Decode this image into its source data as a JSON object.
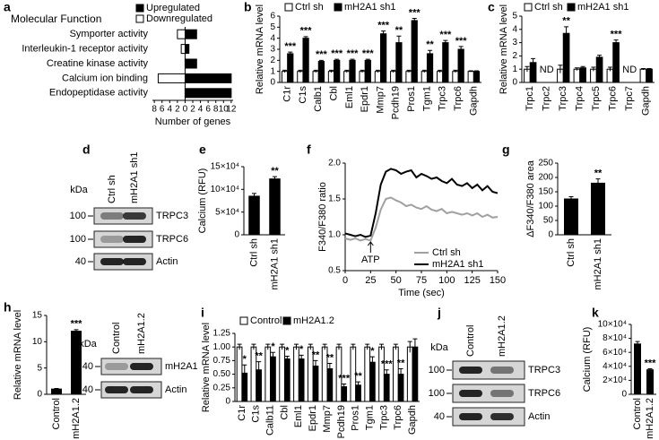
{
  "chart_data": [
    {
      "panel": "a",
      "type": "hbar",
      "title": "Molecular Function",
      "categories": [
        "Symporter activity",
        "Interleukin-1 receptor activity",
        "Creatine kinase activity",
        "Calcium ion binding",
        "Endopeptidase activity"
      ],
      "series": [
        {
          "name": "Upregulated",
          "color": "#000000",
          "values": [
            3,
            1,
            3,
            12,
            12
          ]
        },
        {
          "name": "Downregulated",
          "color": "#ffffff",
          "values": [
            -2,
            -1,
            0,
            -7,
            0
          ]
        }
      ],
      "xlim": [
        -8.5,
        12.5
      ],
      "xticks": [
        {
          "value": -8,
          "label": "8"
        },
        {
          "value": -6,
          "label": "6"
        },
        {
          "value": -4,
          "label": "4"
        },
        {
          "value": -2,
          "label": "2"
        },
        0,
        2,
        4,
        6,
        8,
        10,
        12
      ],
      "xlabel": "Number of genes"
    },
    {
      "panel": "b",
      "type": "bar",
      "ylabel": "Relative mRNA level",
      "categories": [
        "C1r",
        "C1s",
        "Calb1",
        "Cbl",
        "Eml1",
        "Epdr1",
        "Mmp7",
        "Pcdh19",
        "Pros1",
        "Tgm1",
        "Trpc3",
        "Trpc6",
        "Gapdh"
      ],
      "series": [
        {
          "name": "Ctrl sh",
          "color": "#ffffff",
          "values": [
            1,
            1,
            1,
            1,
            1,
            1,
            1,
            1,
            1,
            1,
            1,
            1,
            1
          ],
          "errors": [
            0.1,
            0.1,
            0.1,
            0.1,
            0.1,
            0.1,
            0.1,
            0.1,
            0.1,
            0.1,
            0.1,
            0.1,
            0.05
          ]
        },
        {
          "name": "mH2A1 sh1",
          "color": "#000000",
          "values": [
            2.6,
            4.0,
            1.9,
            2.0,
            2.0,
            2.0,
            4.4,
            3.6,
            5.6,
            2.6,
            3.6,
            3.0,
            1.0
          ],
          "errors": [
            0.15,
            0.15,
            0.1,
            0.1,
            0.1,
            0.1,
            0.25,
            0.6,
            0.2,
            0.3,
            0.2,
            0.25,
            0.05
          ]
        }
      ],
      "notes": [
        "***",
        "***",
        "***",
        "***",
        "***",
        "***",
        "***",
        "**",
        "***",
        "**",
        "***",
        "***",
        null
      ],
      "ylim": [
        0,
        6
      ],
      "yticks": [
        0,
        1,
        2,
        3,
        4,
        5,
        6
      ],
      "legend": true
    },
    {
      "panel": "c",
      "type": "bar",
      "ylabel": "Relative mRNA level",
      "categories": [
        "Trpc1",
        "Trpc2",
        "Trpc3",
        "Trpc4",
        "Trpc5",
        "Trpc6",
        "Trpc7",
        "Gapdh"
      ],
      "series": [
        {
          "name": "Ctrl sh",
          "color": "#ffffff",
          "values": [
            1,
            null,
            1,
            1,
            1,
            1,
            null,
            1
          ],
          "errors": [
            0.2,
            null,
            0.3,
            0.1,
            0.15,
            0.15,
            null,
            0.05
          ]
        },
        {
          "name": "mH2A1 sh1",
          "color": "#000000",
          "values": [
            1.5,
            null,
            3.7,
            1.1,
            1.9,
            3.0,
            null,
            1.0
          ],
          "errors": [
            0.3,
            null,
            0.5,
            0.1,
            0.15,
            0.2,
            null,
            0.05
          ]
        }
      ],
      "notes": [
        null,
        "ND",
        "**",
        null,
        null,
        "***",
        "ND",
        null
      ],
      "ylim": [
        0,
        5
      ],
      "yticks": [
        0,
        1,
        2,
        3,
        4,
        5
      ],
      "legend": true
    },
    {
      "panel": "d",
      "type": "blot",
      "lanes": [
        "Ctrl sh",
        "mH2A1 sh1"
      ],
      "unit": "kDa",
      "rows": [
        {
          "marker": 100,
          "label": "TRPC3"
        },
        {
          "marker": 100,
          "label": "TRPC6"
        },
        {
          "marker": 40,
          "label": "Actin"
        }
      ]
    },
    {
      "panel": "e",
      "type": "bar",
      "ylabel": "Calcium (RFU)",
      "categories": [
        "Ctrl sh",
        "mH2A1 sh1"
      ],
      "values": [
        85000,
        123000
      ],
      "errors": [
        6000,
        5000
      ],
      "color": "#000000",
      "notes": [
        null,
        "**"
      ],
      "ylim": [
        0,
        150000
      ],
      "yticks": [
        0,
        {
          "value": 50000,
          "label": "5×10⁴"
        },
        {
          "value": 100000,
          "label": "10×10⁴"
        },
        {
          "value": 150000,
          "label": "15×10⁴"
        }
      ]
    },
    {
      "panel": "f",
      "type": "line",
      "ylabel": "F340/F380 ratio",
      "xlabel": "Time (sec)",
      "x": [
        0,
        5,
        10,
        15,
        20,
        25,
        30,
        35,
        40,
        45,
        50,
        55,
        60,
        65,
        70,
        75,
        80,
        85,
        90,
        95,
        100,
        105,
        110,
        115,
        120,
        125,
        130,
        135,
        140,
        145,
        150
      ],
      "series": [
        {
          "name": "Ctrl sh",
          "color": "#a0a0a0",
          "values": [
            0.95,
            0.93,
            0.95,
            0.92,
            0.94,
            0.92,
            1.1,
            1.35,
            1.5,
            1.52,
            1.48,
            1.45,
            1.4,
            1.42,
            1.38,
            1.36,
            1.4,
            1.35,
            1.33,
            1.36,
            1.3,
            1.32,
            1.3,
            1.28,
            1.3,
            1.27,
            1.3,
            1.25,
            1.28,
            1.24,
            1.25
          ]
        },
        {
          "name": "mH2A1 sh1",
          "color": "#000000",
          "values": [
            1.02,
            1.0,
            0.98,
            1.0,
            0.97,
            0.99,
            1.3,
            1.7,
            1.88,
            1.92,
            1.9,
            1.85,
            1.88,
            1.9,
            1.8,
            1.85,
            1.82,
            1.78,
            1.8,
            1.75,
            1.72,
            1.78,
            1.7,
            1.68,
            1.72,
            1.65,
            1.7,
            1.62,
            1.68,
            1.6,
            1.58
          ]
        }
      ],
      "annotation": {
        "text": "ATP",
        "x": 25
      },
      "xlim": [
        0,
        150
      ],
      "xticks": [
        0,
        25,
        50,
        75,
        100,
        125,
        150
      ],
      "ylim": [
        0.5,
        2.0
      ],
      "yticks": [
        0.5,
        {
          "value": 1,
          "label": "1.0"
        },
        1.5,
        {
          "value": 2,
          "label": "2.0"
        }
      ]
    },
    {
      "panel": "g",
      "type": "bar",
      "ylabel": "ΔF340/F380 area",
      "categories": [
        "Ctrl sh",
        "mH2A1 sh1"
      ],
      "values": [
        125,
        180
      ],
      "errors": [
        8,
        15
      ],
      "color": "#000000",
      "notes": [
        null,
        "**"
      ],
      "ylim": [
        0,
        250
      ],
      "yticks": [
        0,
        50,
        100,
        150,
        200,
        250
      ]
    },
    {
      "panel": "h",
      "type": "bar",
      "ylabel": "Relative mRNA level",
      "categories": [
        "Control",
        "mH2A1.2"
      ],
      "values": [
        1,
        12
      ],
      "errors": [
        0.1,
        0.3
      ],
      "color": "#000000",
      "notes": [
        null,
        "***"
      ],
      "ylim": [
        0,
        15
      ],
      "yticks": [
        0,
        5,
        10,
        15
      ]
    },
    {
      "type": "blot",
      "lanes": [
        "Control",
        "mH2A1.2"
      ],
      "unit": "kDa",
      "rows": [
        {
          "marker": 40,
          "label": "mH2A1"
        },
        {
          "marker": 40,
          "label": "Actin"
        }
      ]
    },
    {
      "panel": "i",
      "type": "bar",
      "ylabel": "Relative mRNA level",
      "categories": [
        "C1r",
        "C1s",
        "Calb11",
        "Cbl",
        "Eml1",
        "Epdr1",
        "Mmp7",
        "Pcdh19",
        "Pros1",
        "Tgm1",
        "Trpc3",
        "Trpc6",
        "Gapdh"
      ],
      "series": [
        {
          "name": "Control",
          "color": "#ffffff",
          "values": [
            1,
            1,
            1,
            1,
            1,
            1,
            1,
            1,
            1,
            1,
            1,
            1,
            1
          ],
          "errors": [
            0.05,
            0.05,
            0.05,
            0.05,
            0.05,
            0.05,
            0.05,
            0.05,
            0.05,
            0.05,
            0.05,
            0.05,
            0.1
          ]
        },
        {
          "name": "mH2A1.2",
          "color": "#000000",
          "values": [
            0.52,
            0.58,
            0.82,
            0.78,
            0.78,
            0.65,
            0.6,
            0.27,
            0.3,
            0.72,
            0.5,
            0.5,
            1.0
          ],
          "errors": [
            0.15,
            0.15,
            0.08,
            0.05,
            0.07,
            0.1,
            0.1,
            0.05,
            0.06,
            0.1,
            0.08,
            0.1,
            0.15
          ]
        }
      ],
      "notes": [
        "*",
        "**",
        "*",
        "*",
        "*",
        "**",
        "**",
        "***",
        "**",
        "*",
        "***",
        "**",
        null
      ],
      "ylim": [
        0,
        1.25
      ],
      "yticks": [
        0,
        {
          "value": 0.25,
          "label": "0.25"
        },
        {
          "value": 0.5,
          "label": "0.50"
        },
        {
          "value": 0.75,
          "label": "0.75"
        },
        {
          "value": 1,
          "label": "1.00"
        },
        {
          "value": 1.25,
          "label": "1.25"
        }
      ],
      "legend": true
    },
    {
      "panel": "j",
      "type": "blot",
      "lanes": [
        "Control",
        "mH2A1.2"
      ],
      "unit": "kDa",
      "rows": [
        {
          "marker": 100,
          "label": "TRPC3"
        },
        {
          "marker": 100,
          "label": "TRPC6"
        },
        {
          "marker": 40,
          "label": "Actin"
        }
      ]
    },
    {
      "panel": "k",
      "type": "bar",
      "ylabel": "Calcium (RFU)",
      "categories": [
        "Control",
        "mH2A1.2"
      ],
      "values": [
        72000,
        35000
      ],
      "errors": [
        3500,
        1500
      ],
      "color": "#000000",
      "notes": [
        null,
        "***"
      ],
      "ylim": [
        0,
        100000
      ],
      "yticks": [
        0,
        {
          "value": 20000,
          "label": "2×10⁴"
        },
        {
          "value": 40000,
          "label": "4×10⁴"
        },
        {
          "value": 60000,
          "label": "6×10⁴"
        },
        {
          "value": 80000,
          "label": "8×10⁴"
        },
        {
          "value": 100000,
          "label": "10×10⁴"
        }
      ]
    }
  ]
}
